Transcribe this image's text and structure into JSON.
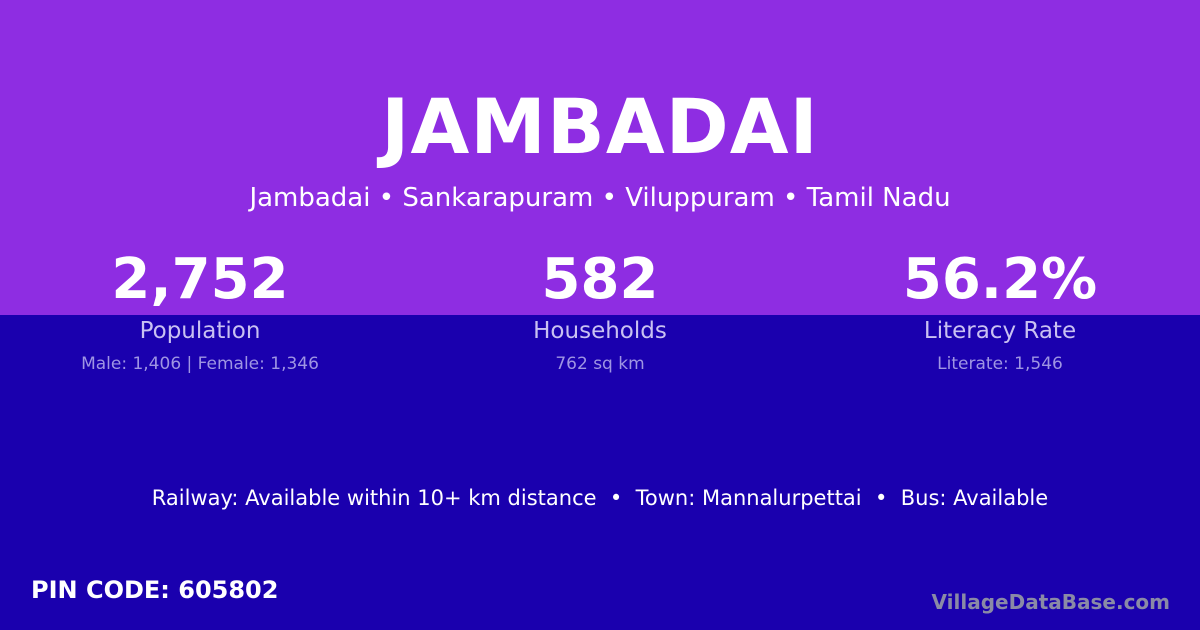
{
  "colors": {
    "top_bg": "#8e2de2",
    "bottom_bg": "#1a00ae",
    "label": "#c9c1f2",
    "subtext": "#9f95e3",
    "brand": "#8a8aa6"
  },
  "title": "JAMBADAI",
  "subtitle": "Jambadai • Sankarapuram • Viluppuram • Tamil Nadu",
  "stats": [
    {
      "value": "2,752",
      "label": "Population",
      "sub": "Male: 1,406 | Female: 1,346"
    },
    {
      "value": "582",
      "label": "Households",
      "sub": "762 sq km"
    },
    {
      "value": "56.2%",
      "label": "Literacy Rate",
      "sub": "Literate: 1,546"
    }
  ],
  "facts": "Railway: Available within 10+ km distance  •  Town: Mannalurpettai  •  Bus: Available",
  "pin": "PIN CODE: 605802",
  "brand": "VillageDataBase.com"
}
